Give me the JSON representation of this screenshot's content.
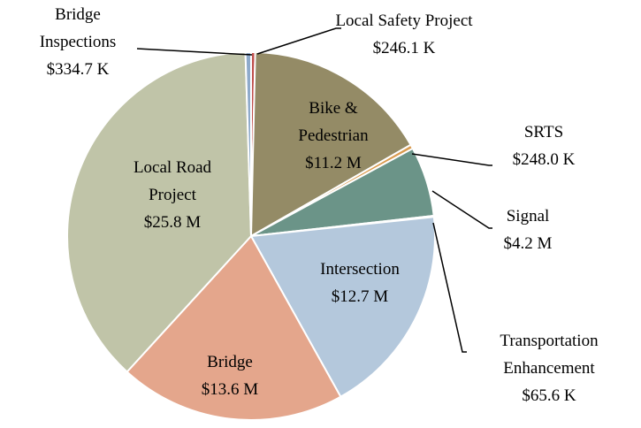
{
  "chart_data": {
    "type": "pie",
    "categories": [
      "Local Safety Project",
      "Bike & Pedestrian",
      "SRTS",
      "Signal",
      "Transportation Enhancement",
      "Intersection",
      "Bridge",
      "Local Road Project",
      "Bridge Inspections"
    ],
    "values": [
      246100,
      11200000,
      248000,
      4200000,
      65600,
      12700000,
      13600000,
      25800000,
      334700
    ],
    "value_labels": [
      "$246.1 K",
      "$11.2 M",
      "$248.0 K",
      "$4.2 M",
      "$65.6 K",
      "$12.7 M",
      "$13.6 M",
      "$25.8 M",
      "$334.7 K"
    ],
    "colors": [
      "#c0504d",
      "#948b66",
      "#d99a4e",
      "#6b9488",
      "#3f5a70",
      "#b4c8dc",
      "#e4a68c",
      "#c0c4a8",
      "#8eaacb"
    ]
  }
}
